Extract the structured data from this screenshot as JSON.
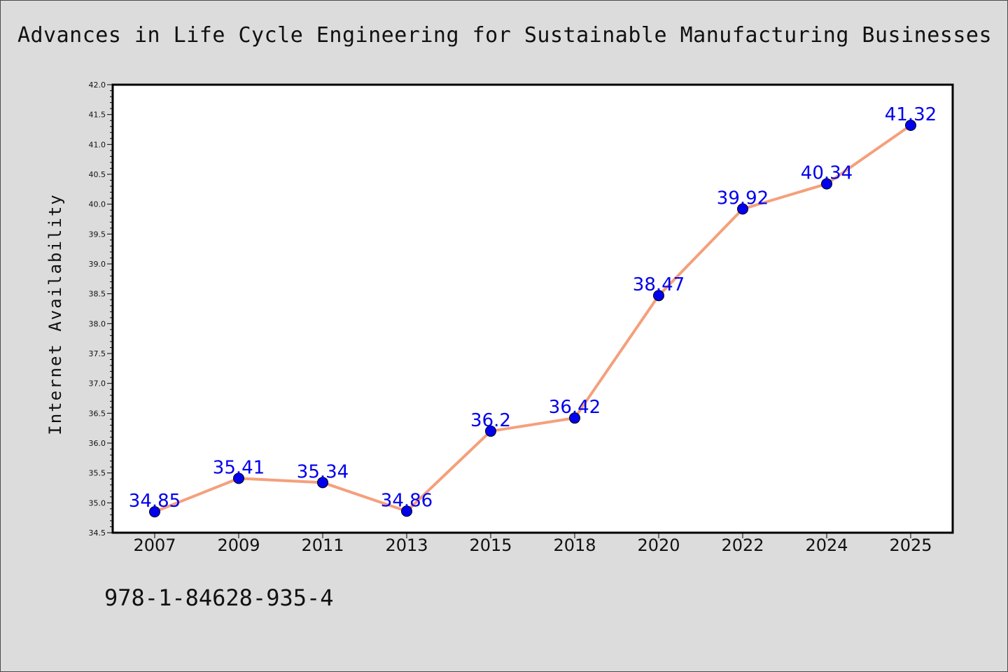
{
  "chart_data": {
    "type": "line",
    "title": "Advances in Life Cycle Engineering for Sustainable Manufacturing Businesses",
    "xlabel": "",
    "ylabel": "Internet Availability",
    "categories": [
      "2007",
      "2009",
      "2011",
      "2013",
      "2015",
      "2018",
      "2020",
      "2022",
      "2024",
      "2025"
    ],
    "series": [
      {
        "values": [
          34.85,
          35.41,
          35.34,
          34.86,
          36.2,
          36.42,
          38.47,
          39.92,
          40.34,
          41.32
        ],
        "labels": [
          "34.85",
          "35.41",
          "35.34",
          "34.86",
          "36.2",
          "36.42",
          "38.47",
          "39.92",
          "40.34",
          "41.32"
        ]
      }
    ],
    "ylim": [
      34.5,
      42.0
    ],
    "yticks": [
      "34.5",
      "35.0",
      "35.5",
      "36.0",
      "36.5",
      "37.0",
      "37.5",
      "38.0",
      "38.5",
      "39.0",
      "39.5",
      "40.0",
      "40.5",
      "41.0",
      "41.5",
      "42.0"
    ],
    "grid": false,
    "line_color": "#f4a07c",
    "marker_color": "#0000ee",
    "label_color": "#0000ee"
  },
  "footer_text": "978-1-84628-935-4"
}
